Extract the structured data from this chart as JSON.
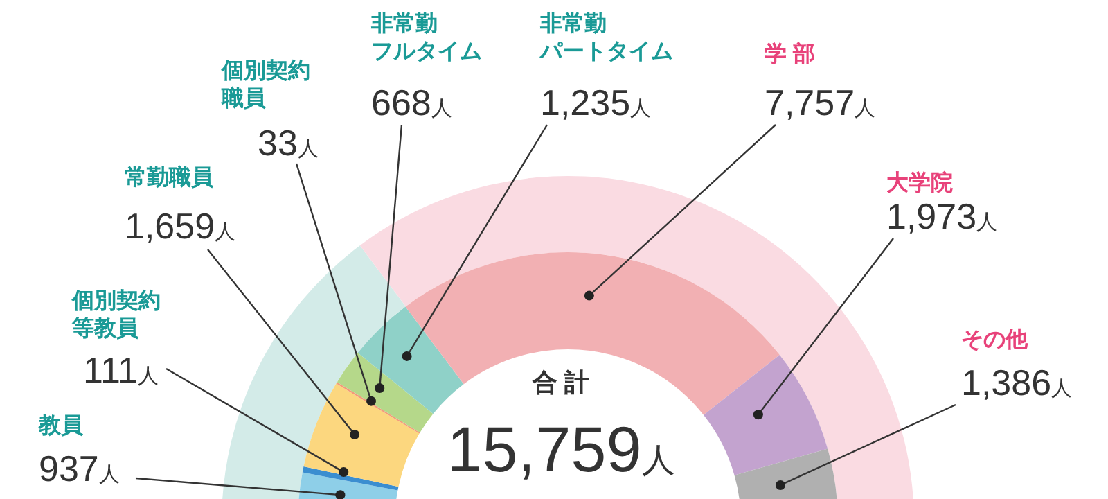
{
  "chart_data": [
    {
      "type": "donut",
      "title": "合 計",
      "annotations": [
        "15,759人"
      ],
      "categories": [
        "教員",
        "個別契約等教員",
        "常勤職員",
        "個別契約職員",
        "非常勤フルタイム",
        "非常勤パートタイム",
        "学 部",
        "大学院",
        "その他"
      ],
      "values": [
        937,
        111,
        1659,
        33,
        668,
        1235,
        7757,
        1973,
        1386
      ],
      "colors": [
        "#8ecfe8",
        "#3b8ed0",
        "#fcd77f",
        "#f39c7a",
        "#b5d88a",
        "#8fd1c8",
        "#f2b0b3",
        "#c3a3cf",
        "#b0b0b0"
      ],
      "value_labels": [
        "937人",
        "111人",
        "1,659人",
        "33人",
        "668人",
        "1,235人",
        "7,757人",
        "1,973人",
        "1,386人"
      ]
    },
    {
      "type": "donut",
      "categories": [
        null,
        null
      ],
      "values": [
        29.5,
        70.5
      ],
      "colors": [
        "#d3ebe8",
        "#fadbe2"
      ]
    }
  ]
}
